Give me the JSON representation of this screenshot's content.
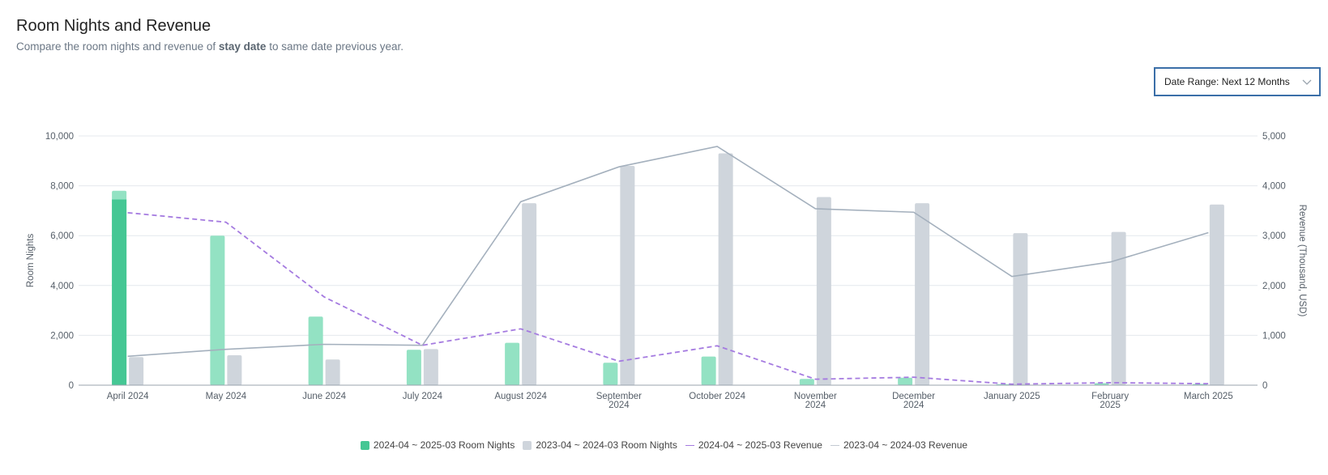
{
  "header": {
    "title": "Room Nights and Revenue",
    "subtitle_prefix": "Compare the room nights and revenue of ",
    "subtitle_bold": "stay date",
    "subtitle_suffix": " to same date previous year."
  },
  "controls": {
    "date_range_label": "Date Range: Next 12 Months"
  },
  "colors": {
    "current_bars": "#93e2c3",
    "current_bars_highlight": "#45c794",
    "previous_bars": "#cfd5dc",
    "current_revenue": "#a57be0",
    "previous_revenue": "#a4b0bd",
    "grid": "#e4e8ed",
    "axis_text": "#555e68"
  },
  "chart_data": {
    "type": "bar",
    "categories": [
      "April 2024",
      "May 2024",
      "June 2024",
      "July 2024",
      "August 2024",
      "September 2024",
      "October 2024",
      "November 2024",
      "December 2024",
      "January 2025",
      "February 2025",
      "March 2025"
    ],
    "category_labels": [
      [
        "April 2024"
      ],
      [
        "May 2024"
      ],
      [
        "June 2024"
      ],
      [
        "July 2024"
      ],
      [
        "August 2024"
      ],
      [
        "September",
        "2024"
      ],
      [
        "October 2024"
      ],
      [
        "November",
        "2024"
      ],
      [
        "December",
        "2024"
      ],
      [
        "January 2025"
      ],
      [
        "February",
        "2025"
      ],
      [
        "March 2025"
      ]
    ],
    "ylabel": "Room Nights",
    "y2label": "Revenue (Thousand, USD)",
    "ylim": [
      0,
      10000
    ],
    "y2lim": [
      0,
      5000
    ],
    "yticks": [
      "0",
      "2,000",
      "4,000",
      "6,000",
      "8,000",
      "10,000"
    ],
    "y2ticks": [
      "0",
      "1,000",
      "2,000",
      "3,000",
      "4,000",
      "5,000"
    ],
    "grid": true,
    "legend_position": "bottom",
    "series": [
      {
        "name": "2024-04 ~ 2025-03 Room Nights",
        "kind": "bar",
        "axis": "left",
        "values": [
          7800,
          6000,
          2750,
          1420,
          1700,
          900,
          1150,
          250,
          300,
          40,
          80,
          50
        ],
        "highlight_values": [
          7450,
          null,
          null,
          null,
          null,
          null,
          null,
          null,
          null,
          null,
          null,
          null
        ]
      },
      {
        "name": "2023-04 ~ 2024-03 Room Nights",
        "kind": "bar",
        "axis": "left",
        "values": [
          1130,
          1200,
          1030,
          1450,
          7300,
          8800,
          9300,
          7550,
          7300,
          6100,
          6150,
          7250
        ]
      },
      {
        "name": "2024-04 ~ 2025-03 Revenue",
        "kind": "line",
        "style": "dashed",
        "axis": "right",
        "values": [
          3460,
          3270,
          1770,
          800,
          1130,
          480,
          790,
          120,
          160,
          20,
          50,
          30
        ]
      },
      {
        "name": "2023-04 ~ 2024-03 Revenue",
        "kind": "line",
        "style": "solid",
        "axis": "right",
        "values": [
          580,
          720,
          820,
          800,
          3680,
          4380,
          4790,
          3540,
          3470,
          2180,
          2470,
          3060
        ]
      }
    ]
  }
}
